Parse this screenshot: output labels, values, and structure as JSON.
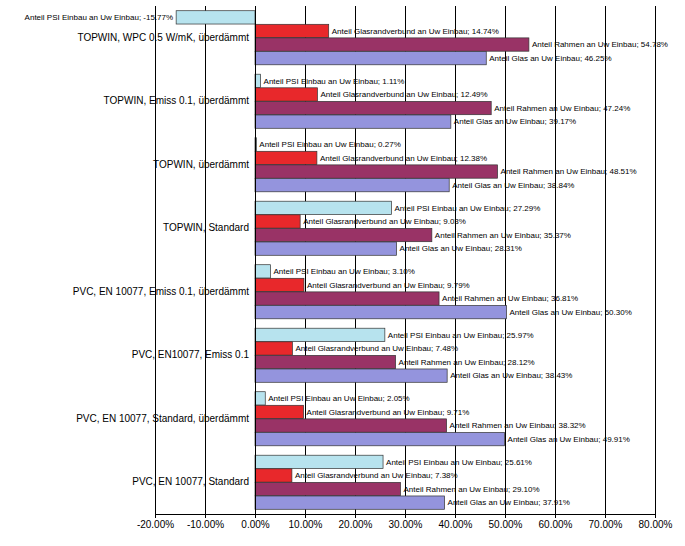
{
  "chart_data": {
    "type": "bar",
    "orientation": "horizontal",
    "categories": [
      "TOPWIN, WPC 0.5 W/mK, überdämmt",
      "TOPWIN, Emiss 0.1, überdämmt",
      "TOPWIN, überdämmt",
      "TOPWIN, Standard",
      "PVC, EN 10077, Emiss 0.1, überdämmt",
      "PVC, EN10077, Emiss 0.1",
      "PVC, EN 10077, Standard, überdämmt",
      "PVC, EN 10077, Standard"
    ],
    "series": [
      {
        "color": "#b7e3ee",
        "values": [
          -15.77,
          1.11,
          0.27,
          27.29,
          3.1,
          25.97,
          2.05,
          25.61
        ],
        "value_labels": [
          "Anteil PSI Einbau an Uw Einbau; -15.77%",
          "Anteil PSI Einbau an Uw Einbau; 1.11%",
          "Anteil PSI Einbau an Uw Einbau; 0.27%",
          "Anteil PSI Einbau an Uw Einbau; 27.29%",
          "Anteil PSI Einbau an Uw Einbau; 3.10%",
          "Anteil PSI Einbau an Uw Einbau; 25.97%",
          "Anteil PSI Einbau an Uw Einbau; 2.05%",
          "Anteil PSI Einbau an Uw Einbau; 25.61%"
        ]
      },
      {
        "color": "#e8282b",
        "values": [
          14.74,
          12.49,
          12.38,
          9.03,
          9.79,
          7.48,
          9.71,
          7.38
        ],
        "value_labels": [
          "Anteil Glasrandverbund an Uw Einbau; 14.74%",
          "Anteil Glasrandverbund an Uw Einbau; 12.49%",
          "Anteil Glasrandverbund an Uw Einbau; 12.38%",
          "Anteil Glasrandverbund an Uw Einbau; 9.03%",
          "Anteil Glasrandverbund an Uw Einbau; 9.79%",
          "Anteil Glasrandverbund an Uw Einbau; 7.48%",
          "Anteil Glasrandverbund an Uw Einbau; 9.71%",
          "Anteil Glasrandverbund an Uw Einbau; 7.38%"
        ]
      },
      {
        "color": "#993366",
        "values": [
          54.78,
          47.24,
          48.51,
          35.37,
          36.81,
          28.12,
          38.32,
          29.1
        ],
        "value_labels": [
          "Anteil Rahmen an Uw Einbau; 54.78%",
          "Anteil Rahmen an Uw Einbau; 47.24%",
          "Anteil Rahmen an Uw Einbau; 48.51%",
          "Anteil Rahmen an Uw Einbau; 35.37%",
          "Anteil Rahmen an Uw Einbau; 36.81%",
          "Anteil Rahmen an Uw Einbau; 28.12%",
          "Anteil Rahmen an Uw Einbau; 38.32%",
          "Anteil Rahmen an Uw Einbau; 29.10%"
        ]
      },
      {
        "color": "#9494dd",
        "values": [
          46.25,
          39.17,
          38.84,
          28.31,
          50.3,
          38.43,
          49.91,
          37.91
        ],
        "value_labels": [
          "Anteil Glas an Uw Einbau; 46.25%",
          "Anteil Glas an Uw Einbau; 39.17%",
          "Anteil Glas an Uw Einbau; 38.84%",
          "Anteil Glas an Uw Einbau; 28.31%",
          "Anteil Glas an Uw Einbau; 50.30%",
          "Anteil Glas an Uw Einbau; 38.43%",
          "Anteil Glas an Uw Einbau; 49.91%",
          "Anteil Glas an Uw Einbau; 37.91%"
        ]
      }
    ],
    "xlim": [
      -20,
      80
    ],
    "xticks": [
      {
        "value": -20,
        "label": "-20.00%"
      },
      {
        "value": -10,
        "label": "-10.00%"
      },
      {
        "value": 0,
        "label": "0.00%"
      },
      {
        "value": 10,
        "label": "10.00%"
      },
      {
        "value": 20,
        "label": "20.00%"
      },
      {
        "value": 30,
        "label": "30.00%"
      },
      {
        "value": 40,
        "label": "40.00%"
      },
      {
        "value": 50,
        "label": "50.00%"
      },
      {
        "value": 60,
        "label": "60.00%"
      },
      {
        "value": 70,
        "label": "70.00%"
      },
      {
        "value": 80,
        "label": "80.00%"
      }
    ],
    "grid": true,
    "data_labels": true
  }
}
